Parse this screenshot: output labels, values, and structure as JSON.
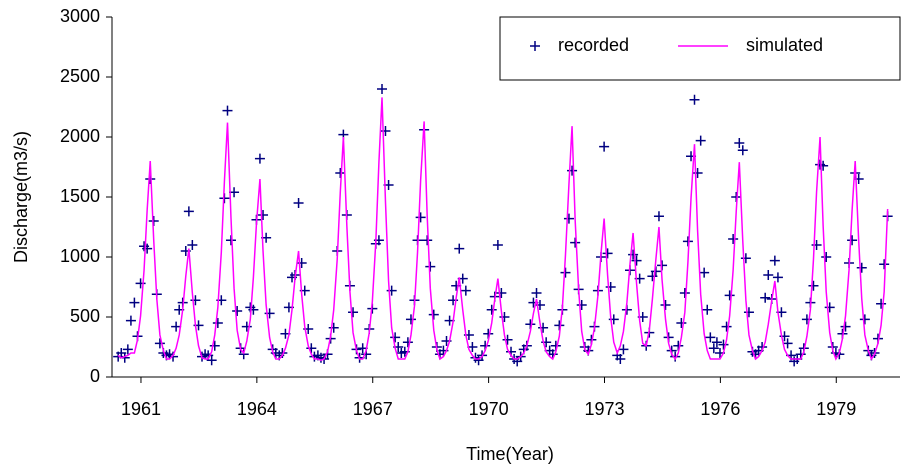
{
  "chart_data": {
    "type": "line",
    "xlabel": "Time(Year)",
    "ylabel": "Discharge(m3/s)",
    "xlim": [
      1960.25,
      1980.65
    ],
    "xticks": [
      1961,
      1964,
      1967,
      1970,
      1973,
      1976,
      1979
    ],
    "ylim": [
      0,
      3000
    ],
    "yticks": [
      0,
      500,
      1000,
      1500,
      2000,
      2500,
      3000
    ],
    "grid": false,
    "legend": "upper right",
    "x": [
      1960.41,
      1960.49,
      1960.58,
      1960.66,
      1960.74,
      1960.83,
      1960.91,
      1960.99,
      1961.08,
      1961.16,
      1961.24,
      1961.33,
      1961.41,
      1961.49,
      1961.58,
      1961.66,
      1961.74,
      1961.83,
      1961.91,
      1961.99,
      1962.08,
      1962.16,
      1962.24,
      1962.33,
      1962.41,
      1962.49,
      1962.58,
      1962.66,
      1962.74,
      1962.83,
      1962.91,
      1962.99,
      1963.08,
      1963.16,
      1963.24,
      1963.33,
      1963.41,
      1963.49,
      1963.58,
      1963.66,
      1963.74,
      1963.83,
      1963.91,
      1963.99,
      1964.08,
      1964.16,
      1964.24,
      1964.33,
      1964.41,
      1964.49,
      1964.58,
      1964.66,
      1964.74,
      1964.83,
      1964.91,
      1964.99,
      1965.08,
      1965.16,
      1965.24,
      1965.33,
      1965.41,
      1965.49,
      1965.58,
      1965.66,
      1965.74,
      1965.83,
      1965.91,
      1965.99,
      1966.08,
      1966.16,
      1966.24,
      1966.33,
      1966.41,
      1966.49,
      1966.58,
      1966.66,
      1966.74,
      1966.83,
      1966.91,
      1966.99,
      1967.08,
      1967.16,
      1967.24,
      1967.33,
      1967.41,
      1967.49,
      1967.58,
      1967.66,
      1967.74,
      1967.83,
      1967.91,
      1967.99,
      1968.08,
      1968.16,
      1968.24,
      1968.33,
      1968.41,
      1968.49,
      1968.58,
      1968.66,
      1968.74,
      1968.83,
      1968.91,
      1968.99,
      1969.08,
      1969.16,
      1969.24,
      1969.33,
      1969.41,
      1969.49,
      1969.58,
      1969.66,
      1969.74,
      1969.83,
      1969.91,
      1969.99,
      1970.08,
      1970.16,
      1970.24,
      1970.33,
      1970.41,
      1970.49,
      1970.58,
      1970.66,
      1970.74,
      1970.83,
      1970.91,
      1970.99,
      1971.08,
      1971.16,
      1971.24,
      1971.33,
      1971.41,
      1971.49,
      1971.58,
      1971.66,
      1971.74,
      1971.83,
      1971.91,
      1971.99,
      1972.08,
      1972.16,
      1972.24,
      1972.33,
      1972.41,
      1972.49,
      1972.58,
      1972.66,
      1972.74,
      1972.83,
      1972.91,
      1972.99,
      1973.08,
      1973.16,
      1973.24,
      1973.33,
      1973.41,
      1973.49,
      1973.58,
      1973.66,
      1973.74,
      1973.83,
      1973.91,
      1973.99,
      1974.08,
      1974.16,
      1974.24,
      1974.33,
      1974.41,
      1974.49,
      1974.58,
      1974.66,
      1974.74,
      1974.83,
      1974.91,
      1974.99,
      1975.08,
      1975.16,
      1975.24,
      1975.33,
      1975.41,
      1975.49,
      1975.58,
      1975.66,
      1975.74,
      1975.83,
      1975.91,
      1975.99,
      1976.08,
      1976.16,
      1976.24,
      1976.33,
      1976.41,
      1976.49,
      1976.58,
      1976.66,
      1976.74,
      1976.83,
      1976.91,
      1976.99,
      1977.08,
      1977.16,
      1977.24,
      1977.33,
      1977.41,
      1977.49,
      1977.58,
      1977.66,
      1977.74,
      1977.83,
      1977.91,
      1977.99,
      1978.08,
      1978.16,
      1978.24,
      1978.33,
      1978.41,
      1978.49,
      1978.58,
      1978.66,
      1978.74,
      1978.83,
      1978.91,
      1978.99,
      1979.08,
      1979.16,
      1979.24,
      1979.33,
      1979.41,
      1979.49,
      1979.58,
      1979.66,
      1979.74,
      1979.83,
      1979.91,
      1979.99,
      1980.08,
      1980.16,
      1980.24,
      1980.33
    ],
    "series": [
      {
        "name": "recorded",
        "color": "#000080",
        "marker": "+",
        "values": [
          170,
          200,
          160,
          230,
          470,
          620,
          340,
          780,
          1090,
          1070,
          1650,
          1300,
          690,
          280,
          200,
          180,
          190,
          170,
          420,
          560,
          620,
          1050,
          1380,
          1100,
          640,
          430,
          170,
          190,
          180,
          140,
          260,
          450,
          640,
          1490,
          2220,
          1140,
          1540,
          550,
          240,
          190,
          420,
          580,
          560,
          1310,
          1820,
          1350,
          1160,
          530,
          230,
          200,
          180,
          200,
          360,
          580,
          830,
          850,
          1450,
          950,
          720,
          400,
          240,
          170,
          180,
          160,
          150,
          190,
          320,
          410,
          1050,
          1700,
          2020,
          1350,
          760,
          540,
          230,
          160,
          240,
          190,
          400,
          570,
          1110,
          1140,
          2400,
          2050,
          1600,
          720,
          330,
          250,
          200,
          210,
          290,
          480,
          640,
          1140,
          1330,
          2060,
          1140,
          920,
          520,
          250,
          190,
          220,
          300,
          470,
          640,
          760,
          1070,
          820,
          720,
          350,
          250,
          160,
          140,
          180,
          260,
          360,
          560,
          670,
          1100,
          700,
          500,
          310,
          210,
          150,
          130,
          170,
          230,
          260,
          440,
          620,
          700,
          600,
          410,
          290,
          220,
          190,
          260,
          430,
          560,
          870,
          1320,
          1720,
          1120,
          730,
          600,
          250,
          220,
          310,
          420,
          720,
          1000,
          1920,
          1030,
          750,
          480,
          180,
          150,
          230,
          560,
          890,
          1020,
          970,
          820,
          500,
          260,
          370,
          840,
          880,
          1340,
          930,
          600,
          330,
          220,
          170,
          260,
          450,
          700,
          1130,
          1840,
          2310,
          1700,
          1970,
          870,
          560,
          330,
          240,
          290,
          200,
          270,
          420,
          680,
          1150,
          1500,
          1950,
          1890,
          990,
          540,
          210,
          190,
          220,
          250,
          660,
          850,
          650,
          970,
          830,
          540,
          340,
          280,
          180,
          130,
          150,
          190,
          240,
          480,
          620,
          760,
          1100,
          1770,
          1760,
          1000,
          580,
          250,
          200,
          190,
          360,
          420,
          950,
          1140,
          1700,
          1650,
          910,
          480,
          220,
          180,
          200,
          320,
          610,
          940,
          1340
        ]
      },
      {
        "name": "simulated",
        "color": "#ff00ff",
        "values": [
          180,
          160,
          170,
          180,
          200,
          200,
          310,
          510,
          890,
          1390,
          1800,
          1140,
          650,
          350,
          220,
          150,
          150,
          180,
          240,
          350,
          560,
          840,
          1070,
          700,
          430,
          260,
          160,
          150,
          150,
          210,
          350,
          580,
          1040,
          1630,
          2120,
          1330,
          740,
          390,
          230,
          200,
          300,
          480,
          830,
          1280,
          1650,
          1050,
          600,
          330,
          210,
          150,
          150,
          180,
          240,
          350,
          560,
          830,
          1050,
          690,
          420,
          260,
          190,
          150,
          150,
          140,
          150,
          210,
          340,
          560,
          980,
          1540,
          2000,
          1260,
          710,
          370,
          220,
          150,
          150,
          220,
          370,
          630,
          1130,
          1790,
          2330,
          1460,
          800,
          410,
          240,
          150,
          150,
          150,
          210,
          350,
          590,
          1040,
          1640,
          2130,
          1340,
          740,
          390,
          230,
          150,
          170,
          220,
          300,
          460,
          660,
          830,
          560,
          350,
          230,
          180,
          150,
          150,
          170,
          220,
          300,
          450,
          650,
          820,
          550,
          350,
          230,
          180,
          150,
          150,
          170,
          200,
          260,
          380,
          530,
          650,
          450,
          300,
          210,
          170,
          150,
          210,
          340,
          580,
          1020,
          1610,
          2090,
          1310,
          730,
          380,
          230,
          190,
          270,
          410,
          680,
          1030,
          1320,
          850,
          500,
          290,
          200,
          260,
          380,
          620,
          940,
          1200,
          780,
          470,
          280,
          260,
          390,
          650,
          980,
          1250,
          810,
          480,
          280,
          190,
          150,
          200,
          330,
          540,
          960,
          1490,
          1940,
          1220,
          690,
          360,
          220,
          150,
          150,
          150,
          150,
          200,
          310,
          510,
          890,
          1380,
          1790,
          1130,
          640,
          350,
          220,
          150,
          170,
          220,
          290,
          440,
          640,
          800,
          540,
          350,
          230,
          180,
          150,
          150,
          150,
          150,
          210,
          340,
          560,
          980,
          1540,
          2000,
          1260,
          710,
          370,
          220,
          150,
          200,
          320,
          510,
          890,
          1390,
          1800,
          1140,
          650,
          350,
          220,
          150,
          190,
          280,
          430,
          710,
          1400
        ]
      }
    ]
  }
}
